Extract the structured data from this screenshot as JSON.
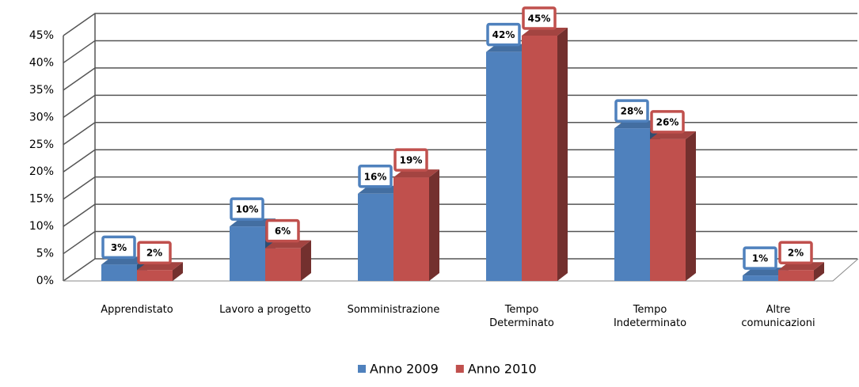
{
  "chart_data": {
    "type": "bar3d",
    "categories": [
      "Apprendistato",
      "Lavoro a progetto",
      "Somministrazione",
      "Tempo\nDeterminato",
      "Tempo\nIndeterminato",
      "Altre\ncomunicazioni"
    ],
    "series": [
      {
        "name": "Anno 2009",
        "color": "#4f81bd",
        "values": [
          3,
          10,
          16,
          42,
          28,
          1
        ],
        "value_labels": [
          "3%",
          "10%",
          "16%",
          "42%",
          "28%",
          "1%"
        ]
      },
      {
        "name": "Anno 2010",
        "color": "#c0504d",
        "values": [
          2,
          6,
          19,
          45,
          26,
          2
        ],
        "value_labels": [
          "2%",
          "6%",
          "19%",
          "45%",
          "26%",
          "2%"
        ]
      }
    ],
    "ylim": [
      0,
      45
    ],
    "yticks": [
      {
        "value": 0,
        "label": "0%"
      },
      {
        "value": 5,
        "label": "5%"
      },
      {
        "value": 10,
        "label": "10%"
      },
      {
        "value": 15,
        "label": "15%"
      },
      {
        "value": 20,
        "label": "20%"
      },
      {
        "value": 25,
        "label": "25%"
      },
      {
        "value": 30,
        "label": "30%"
      },
      {
        "value": 35,
        "label": "35%"
      },
      {
        "value": 40,
        "label": "40%"
      },
      {
        "value": 45,
        "label": "45%"
      }
    ],
    "grid": true,
    "legend": "bottom"
  }
}
